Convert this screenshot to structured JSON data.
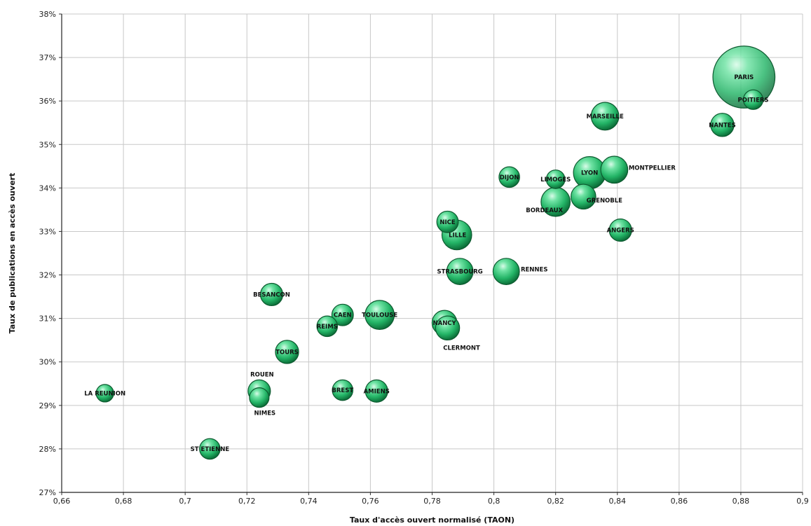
{
  "chart_data": {
    "type": "scatter",
    "title": "",
    "xlabel": "Taux d'accès ouvert normalisé (TAON)",
    "ylabel": "Taux de publications en accès ouvert",
    "xlim": [
      0.66,
      0.9
    ],
    "ylim": [
      27,
      38
    ],
    "x_ticks": [
      "0,66",
      "0,68",
      "0,7",
      "0,72",
      "0,74",
      "0,76",
      "0,78",
      "0,8",
      "0,82",
      "0,84",
      "0,86",
      "0,88",
      "0,9"
    ],
    "y_ticks": [
      "27%",
      "28%",
      "29%",
      "30%",
      "31%",
      "32%",
      "33%",
      "34%",
      "35%",
      "36%",
      "37%",
      "38%"
    ],
    "grid": true,
    "points": [
      {
        "label": "PARIS",
        "x": 0.881,
        "y": 36.55,
        "size": 10.0
      },
      {
        "label": "POITIERS",
        "x": 0.884,
        "y": 36.03,
        "size": 1.0
      },
      {
        "label": "MARSEILLE",
        "x": 0.836,
        "y": 35.65,
        "size": 2.0
      },
      {
        "label": "NANTES",
        "x": 0.874,
        "y": 35.45,
        "size": 1.4
      },
      {
        "label": "LYON",
        "x": 0.831,
        "y": 34.35,
        "size": 2.7
      },
      {
        "label": "MONTPELLIER",
        "x": 0.839,
        "y": 34.42,
        "size": 1.9
      },
      {
        "label": "DIJON",
        "x": 0.805,
        "y": 34.25,
        "size": 1.1
      },
      {
        "label": "LIMOGES",
        "x": 0.82,
        "y": 34.2,
        "size": 0.9
      },
      {
        "label": "GRENOBLE",
        "x": 0.829,
        "y": 33.8,
        "size": 1.6
      },
      {
        "label": "BORDEAUX",
        "x": 0.82,
        "y": 33.68,
        "size": 2.2
      },
      {
        "label": "NICE",
        "x": 0.785,
        "y": 33.22,
        "size": 1.2
      },
      {
        "label": "LILLE",
        "x": 0.788,
        "y": 32.92,
        "size": 2.3
      },
      {
        "label": "ANGERS",
        "x": 0.841,
        "y": 33.03,
        "size": 1.3
      },
      {
        "label": "STRASBOURG",
        "x": 0.789,
        "y": 32.08,
        "size": 1.8
      },
      {
        "label": "RENNES",
        "x": 0.804,
        "y": 32.08,
        "size": 1.8
      },
      {
        "label": "BESANCON",
        "x": 0.728,
        "y": 31.55,
        "size": 1.3
      },
      {
        "label": "CAEN",
        "x": 0.751,
        "y": 31.08,
        "size": 1.2
      },
      {
        "label": "TOULOUSE",
        "x": 0.763,
        "y": 31.08,
        "size": 2.2
      },
      {
        "label": "REIMS",
        "x": 0.746,
        "y": 30.82,
        "size": 1.1
      },
      {
        "label": "NANCY",
        "x": 0.784,
        "y": 30.9,
        "size": 1.6
      },
      {
        "label": "CLERMONT",
        "x": 0.785,
        "y": 30.78,
        "size": 1.5
      },
      {
        "label": "TOURS",
        "x": 0.733,
        "y": 30.23,
        "size": 1.4
      },
      {
        "label": "ROUEN",
        "x": 0.724,
        "y": 29.33,
        "size": 1.3
      },
      {
        "label": "NIMES",
        "x": 0.724,
        "y": 29.18,
        "size": 1.0
      },
      {
        "label": "BREST",
        "x": 0.751,
        "y": 29.35,
        "size": 1.1
      },
      {
        "label": "AMIENS",
        "x": 0.762,
        "y": 29.33,
        "size": 1.3
      },
      {
        "label": "LA REUNION",
        "x": 0.674,
        "y": 29.28,
        "size": 0.8
      },
      {
        "label": "ST ETIENNE",
        "x": 0.708,
        "y": 28.0,
        "size": 1.1
      }
    ]
  }
}
